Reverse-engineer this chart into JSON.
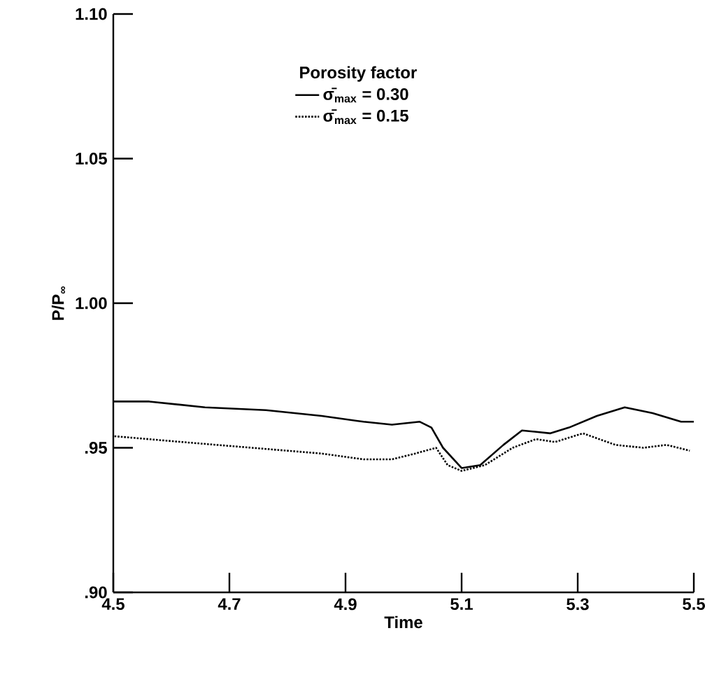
{
  "chart_data": {
    "type": "line",
    "xlabel": "Time",
    "ylabel": "P/P$_{∞}$",
    "legend_title": "Porosity factor",
    "legend": "top",
    "grid": false,
    "xlim": [
      4.5,
      5.5
    ],
    "xticks": [
      4.5,
      4.7,
      4.9,
      5.1,
      5.3,
      5.5
    ],
    "ylim": [
      0.9,
      1.1
    ],
    "yticks": [
      {
        "value": 0.9,
        "label": ".90"
      },
      {
        "value": 0.95,
        "label": ".95"
      },
      {
        "value": 1.0,
        "label": "1.00"
      },
      {
        "value": 1.05,
        "label": "1.05"
      },
      {
        "value": 1.1,
        "label": "1.10"
      }
    ],
    "series": [
      {
        "name": "σ̄$_{max}$ = 0.30",
        "color": "#000000",
        "line_style": "solid",
        "x": [
          4.5,
          4.562,
          4.658,
          4.763,
          4.859,
          4.931,
          4.98,
          5.028,
          5.048,
          5.068,
          5.1,
          5.132,
          5.172,
          5.204,
          5.253,
          5.285,
          5.333,
          5.381,
          5.429,
          5.478,
          5.5
        ],
        "values": [
          0.966,
          0.966,
          0.964,
          0.963,
          0.961,
          0.959,
          0.958,
          0.959,
          0.957,
          0.95,
          0.943,
          0.944,
          0.951,
          0.956,
          0.955,
          0.957,
          0.961,
          0.964,
          0.962,
          0.959,
          0.959
        ]
      },
      {
        "name": "σ̄$_{max}$ = 0.15",
        "color": "#000000",
        "line_style": "dotted",
        "x": [
          4.502,
          4.618,
          4.739,
          4.859,
          4.931,
          4.98,
          5.02,
          5.056,
          5.076,
          5.1,
          5.14,
          5.188,
          5.228,
          5.261,
          5.309,
          5.365,
          5.413,
          5.453,
          5.493
        ],
        "values": [
          0.954,
          0.952,
          0.95,
          0.948,
          0.946,
          0.946,
          0.948,
          0.95,
          0.944,
          0.942,
          0.944,
          0.95,
          0.953,
          0.952,
          0.955,
          0.951,
          0.95,
          0.951,
          0.949
        ]
      }
    ]
  }
}
